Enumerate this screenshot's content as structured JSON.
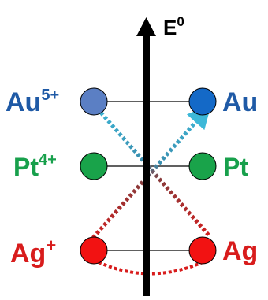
{
  "axis": {
    "label_main": "E",
    "label_sup": "0"
  },
  "levels": [
    {
      "left_base": "Au",
      "left_sup": "5+",
      "right_label": "Au",
      "color_left_label": "#1f5aa6",
      "color_right_label": "#1f5aa6",
      "fill_left": "#5b7fc4",
      "fill_right": "#1469c7"
    },
    {
      "left_base": "Pt",
      "left_sup": "4+",
      "right_label": "Pt",
      "color_left_label": "#18a04c",
      "color_right_label": "#18a04c",
      "fill_left": "#19a34a",
      "fill_right": "#19a34a"
    },
    {
      "left_base": "Ag",
      "left_sup": "+",
      "right_label": "Ag",
      "color_left_label": "#d81c1c",
      "color_right_label": "#d81c1c",
      "fill_left": "#f21212",
      "fill_right": "#f21212"
    }
  ],
  "colors": {
    "axis": "#000000",
    "connector": "#000000",
    "arrow_cyan": "#3db8d8",
    "dotted_red": "#d81c1c"
  }
}
